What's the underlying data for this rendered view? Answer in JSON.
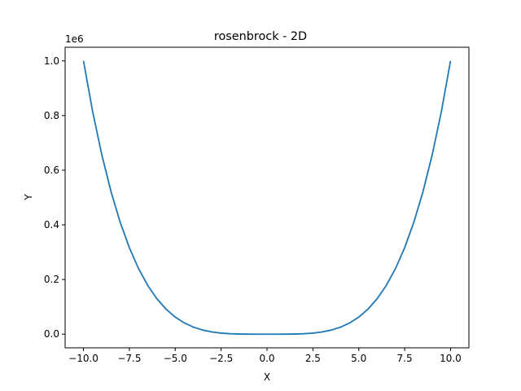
{
  "chart_data": {
    "type": "line",
    "title": "rosenbrock - 2D",
    "xlabel": "X",
    "ylabel": "Y",
    "offset_label": "1e6",
    "xlim": [
      -11,
      11
    ],
    "ylim": [
      -50000,
      1050000
    ],
    "xticks": [
      -10,
      -7.5,
      -5,
      -2.5,
      0,
      2.5,
      5,
      7.5,
      10
    ],
    "xtick_labels": [
      "−10.0",
      "−7.5",
      "−5.0",
      "−2.5",
      "0.0",
      "2.5",
      "5.0",
      "7.5",
      "10.0"
    ],
    "yticks": [
      0,
      200000,
      400000,
      600000,
      800000,
      1000000
    ],
    "ytick_labels": [
      "0.0",
      "0.2",
      "0.4",
      "0.6",
      "0.8",
      "1.0"
    ],
    "grid": false,
    "series": [
      {
        "name": "rosenbrock",
        "color": "#1f77b4",
        "x": [
          -10,
          -9.5,
          -9,
          -8.5,
          -8,
          -7.5,
          -7,
          -6.5,
          -6,
          -5.5,
          -5,
          -4.5,
          -4,
          -3.5,
          -3,
          -2.5,
          -2,
          -1.5,
          -1,
          -0.5,
          0,
          0.5,
          1,
          1.5,
          2,
          2.5,
          3,
          3.5,
          4,
          4.5,
          5,
          5.5,
          6,
          6.5,
          7,
          7.5,
          8,
          8.5,
          9,
          9.5,
          10
        ],
        "y": [
          1000000,
          814506,
          656100,
          522006,
          409600,
          316406,
          240100,
          178506,
          129600,
          91506,
          62500,
          41006,
          25600,
          15006,
          8100,
          3906,
          1600,
          506,
          100,
          6,
          0,
          6,
          100,
          506,
          1600,
          3906,
          8100,
          15006,
          25600,
          41006,
          62500,
          91506,
          129600,
          178506,
          240100,
          316406,
          409600,
          522006,
          656100,
          814506,
          1000000
        ]
      }
    ]
  }
}
